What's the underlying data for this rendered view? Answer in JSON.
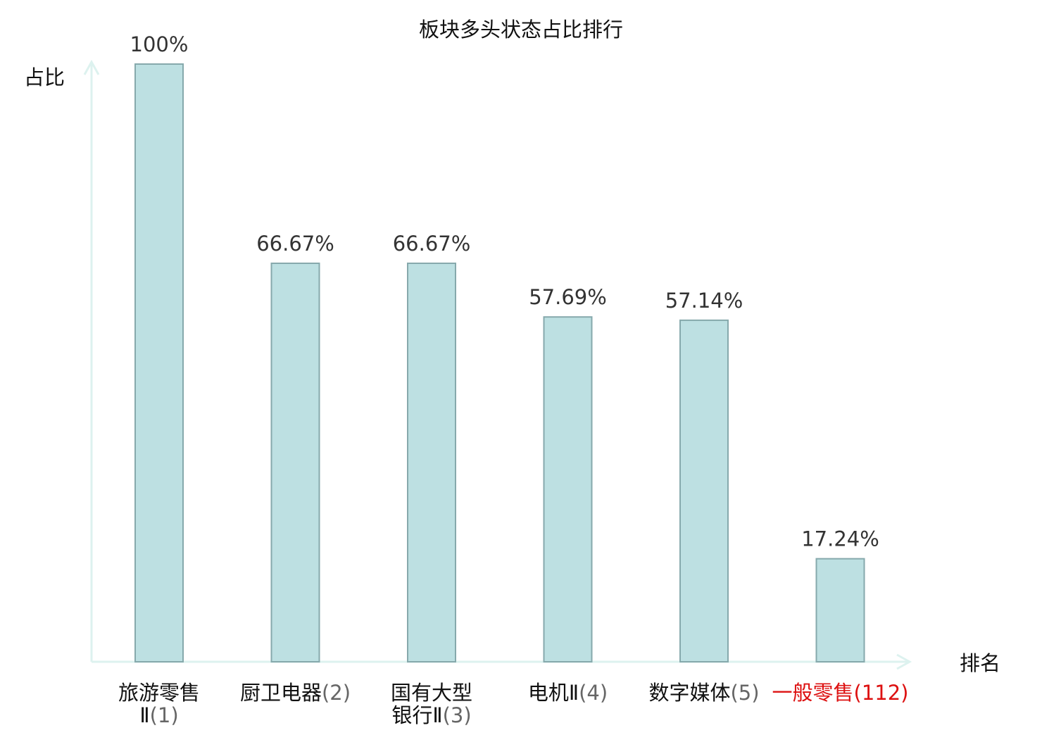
{
  "chart_data": {
    "type": "bar",
    "title": "板块多头状态占比排行",
    "xlabel": "排名",
    "ylabel": "占比",
    "ylim": [
      0,
      100
    ],
    "grid": false,
    "categories": [
      {
        "name_lines": [
          "旅游零售",
          "Ⅱ"
        ],
        "rank": "(1)",
        "highlight": false
      },
      {
        "name_lines": [
          "厨卫电器"
        ],
        "rank": "(2)",
        "highlight": false
      },
      {
        "name_lines": [
          "国有大型",
          "银行Ⅱ"
        ],
        "rank": "(3)",
        "highlight": false
      },
      {
        "name_lines": [
          "电机Ⅱ"
        ],
        "rank": "(4)",
        "highlight": false
      },
      {
        "name_lines": [
          "数字媒体"
        ],
        "rank": "(5)",
        "highlight": false
      },
      {
        "name_lines": [
          "一般零售"
        ],
        "rank": "(112)",
        "highlight": true
      }
    ],
    "values": [
      100,
      66.67,
      66.67,
      57.69,
      57.14,
      17.24
    ],
    "value_labels": [
      "100%",
      "66.67%",
      "66.67%",
      "57.69%",
      "57.14%",
      "17.24%"
    ]
  },
  "colors": {
    "bar_fill": "#bde0e2",
    "bar_stroke": "#86a9ac",
    "axis": "#ddf2ef",
    "text": "#333333",
    "label": "#111111",
    "rank": "#666666",
    "highlight": "#dd1111"
  }
}
